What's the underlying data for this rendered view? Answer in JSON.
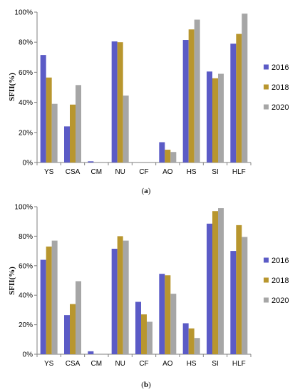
{
  "colors": {
    "2016": "#5b5bc6",
    "2018": "#b8962e",
    "2020": "#a6a6a6",
    "axis": "#7f7f7f"
  },
  "chart_data": [
    {
      "type": "bar",
      "caption": "a",
      "ylabel": "SFII(%)",
      "ylim": [
        0,
        100
      ],
      "yticks": [
        "0%",
        "20%",
        "40%",
        "60%",
        "80%",
        "100%"
      ],
      "categories": [
        "YS",
        "CSA",
        "CM",
        "NU",
        "CF",
        "AO",
        "HS",
        "SI",
        "HLF"
      ],
      "legend_position": "right",
      "series": [
        {
          "name": "2016",
          "values": [
            71.5,
            24,
            0.8,
            80.5,
            0,
            13.5,
            81.5,
            60.5,
            79
          ]
        },
        {
          "name": "2018",
          "values": [
            56.5,
            38.5,
            0,
            80,
            0,
            8.5,
            88.5,
            56,
            85.5
          ]
        },
        {
          "name": "2020",
          "values": [
            39,
            51.5,
            0,
            44.5,
            0,
            7,
            95,
            59,
            99
          ]
        }
      ]
    },
    {
      "type": "bar",
      "caption": "b",
      "ylabel": "SFII(%)",
      "ylim": [
        0,
        100
      ],
      "yticks": [
        "0%",
        "20%",
        "40%",
        "60%",
        "80%",
        "100%"
      ],
      "categories": [
        "YS",
        "CSA",
        "CM",
        "NU",
        "CF",
        "AO",
        "HS",
        "SI",
        "HLF"
      ],
      "legend_position": "right",
      "series": [
        {
          "name": "2016",
          "values": [
            64,
            26.5,
            2,
            71.5,
            35.5,
            54.5,
            21,
            88.5,
            70
          ]
        },
        {
          "name": "2018",
          "values": [
            73,
            34,
            0,
            80,
            27,
            53.5,
            17.5,
            97,
            87.5
          ]
        },
        {
          "name": "2020",
          "values": [
            77,
            49.5,
            0,
            77,
            22,
            41,
            11,
            99,
            79.5
          ]
        }
      ]
    }
  ]
}
